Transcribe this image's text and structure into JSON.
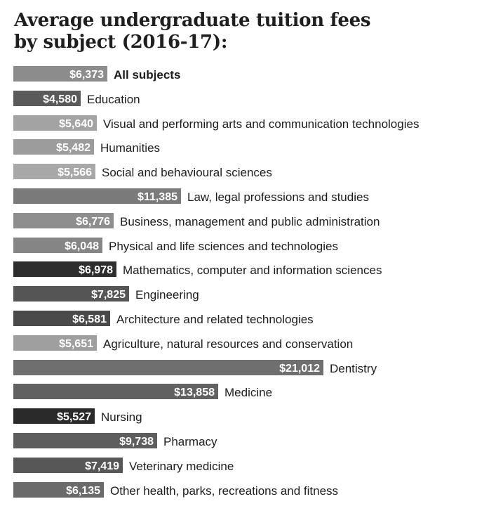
{
  "chart_data": {
    "type": "bar",
    "orientation": "horizontal",
    "title_lines": [
      "Average undergraduate tuition fees",
      "by subject (2016-17):"
    ],
    "currency_prefix": "$",
    "categories": [
      "All subjects",
      "Education",
      "Visual and performing arts and communication technologies",
      "Humanities",
      "Social and behavioural sciences",
      "Law, legal professions and studies",
      "Business, management and public administration",
      "Physical and life sciences and technologies",
      "Mathematics, computer and information sciences",
      "Engineering",
      "Architecture and related technologies",
      "Agriculture, natural resources and conservation",
      "Dentistry",
      "Medicine",
      "Nursing",
      "Pharmacy",
      "Veterinary medicine",
      "Other health, parks, recreations and fitness"
    ],
    "values": [
      6373,
      4580,
      5640,
      5482,
      5566,
      11385,
      6776,
      6048,
      6978,
      7825,
      6581,
      5651,
      21012,
      13858,
      5527,
      9738,
      7419,
      6135
    ],
    "value_labels": [
      "$6,373",
      "$4,580",
      "$5,640",
      "$5,482",
      "$5,566",
      "$11,385",
      "$6,776",
      "$6,048",
      "$6,978",
      "$7,825",
      "$6,581",
      "$5,651",
      "$21,012",
      "$13,858",
      "$5,527",
      "$9,738",
      "$7,419",
      "$6,135"
    ],
    "bar_colors": [
      "#8c8c8c",
      "#5a5a5a",
      "#a3a3a3",
      "#9c9c9c",
      "#a8a8a8",
      "#7a7a7a",
      "#8e8e8e",
      "#858585",
      "#2e2e2e",
      "#555555",
      "#4a4a4a",
      "#9f9f9f",
      "#6f6f6f",
      "#616161",
      "#2a2a2a",
      "#5e5e5e",
      "#575757",
      "#6a6a6a"
    ],
    "highlight_category": "All subjects",
    "xlim": [
      0,
      21012
    ],
    "grid": false,
    "legend": "none"
  }
}
